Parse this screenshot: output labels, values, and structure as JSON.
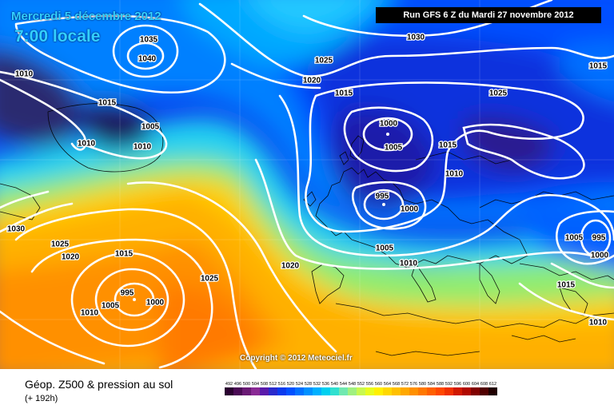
{
  "header": {
    "date": "Mercredi 5 décembre 2012",
    "time": "7:00 locale",
    "run": "Run GFS 6 Z du Mardi 27 novembre 2012"
  },
  "copyright": "Copyright © 2012 Meteociel.fr",
  "footer": {
    "title": "Géop. Z500 & pression au sol",
    "subtitle": "(+ 192h)"
  },
  "legend": {
    "values": [
      "492",
      "496",
      "500",
      "504",
      "508",
      "512",
      "516",
      "520",
      "524",
      "528",
      "532",
      "536",
      "540",
      "544",
      "548",
      "552",
      "556",
      "560",
      "564",
      "568",
      "572",
      "576",
      "580",
      "584",
      "588",
      "592",
      "596",
      "600",
      "604",
      "608",
      "612"
    ],
    "colors": [
      "#2a0030",
      "#4a0a55",
      "#6a1a75",
      "#8a2a95",
      "#5a1aaa",
      "#2a2acc",
      "#0a3aee",
      "#0050ff",
      "#0070ff",
      "#0090ff",
      "#00b0ff",
      "#00d0f0",
      "#30e0d0",
      "#70e8b0",
      "#a0f080",
      "#c8f850",
      "#e8fc20",
      "#fff000",
      "#ffd800",
      "#ffc000",
      "#ffa800",
      "#ff9000",
      "#ff7800",
      "#ff6000",
      "#ff4800",
      "#f03000",
      "#d01800",
      "#b00800",
      "#800000",
      "#500000",
      "#200000"
    ]
  },
  "isobar_labels": [
    {
      "text": "1035"
    },
    {
      "text": "1040"
    },
    {
      "text": "1010"
    },
    {
      "text": "1015"
    },
    {
      "text": "1005"
    },
    {
      "text": "1010"
    },
    {
      "text": "1010"
    },
    {
      "text": "1030"
    },
    {
      "text": "1025"
    },
    {
      "text": "1020"
    },
    {
      "text": "1015"
    },
    {
      "text": "1025"
    },
    {
      "text": "1015"
    },
    {
      "text": "1000"
    },
    {
      "text": "1005"
    },
    {
      "text": "1015"
    },
    {
      "text": "1010"
    },
    {
      "text": "995"
    },
    {
      "text": "1000"
    },
    {
      "text": "1005"
    },
    {
      "text": "1010"
    },
    {
      "text": "1030"
    },
    {
      "text": "1025"
    },
    {
      "text": "1020"
    },
    {
      "text": "1015"
    },
    {
      "text": "995"
    },
    {
      "text": "1005"
    },
    {
      "text": "1010"
    },
    {
      "text": "1000"
    },
    {
      "text": "1025"
    },
    {
      "text": "1020"
    },
    {
      "text": "1005"
    },
    {
      "text": "995"
    },
    {
      "text": "1000"
    },
    {
      "text": "1015"
    },
    {
      "text": "1010"
    }
  ]
}
